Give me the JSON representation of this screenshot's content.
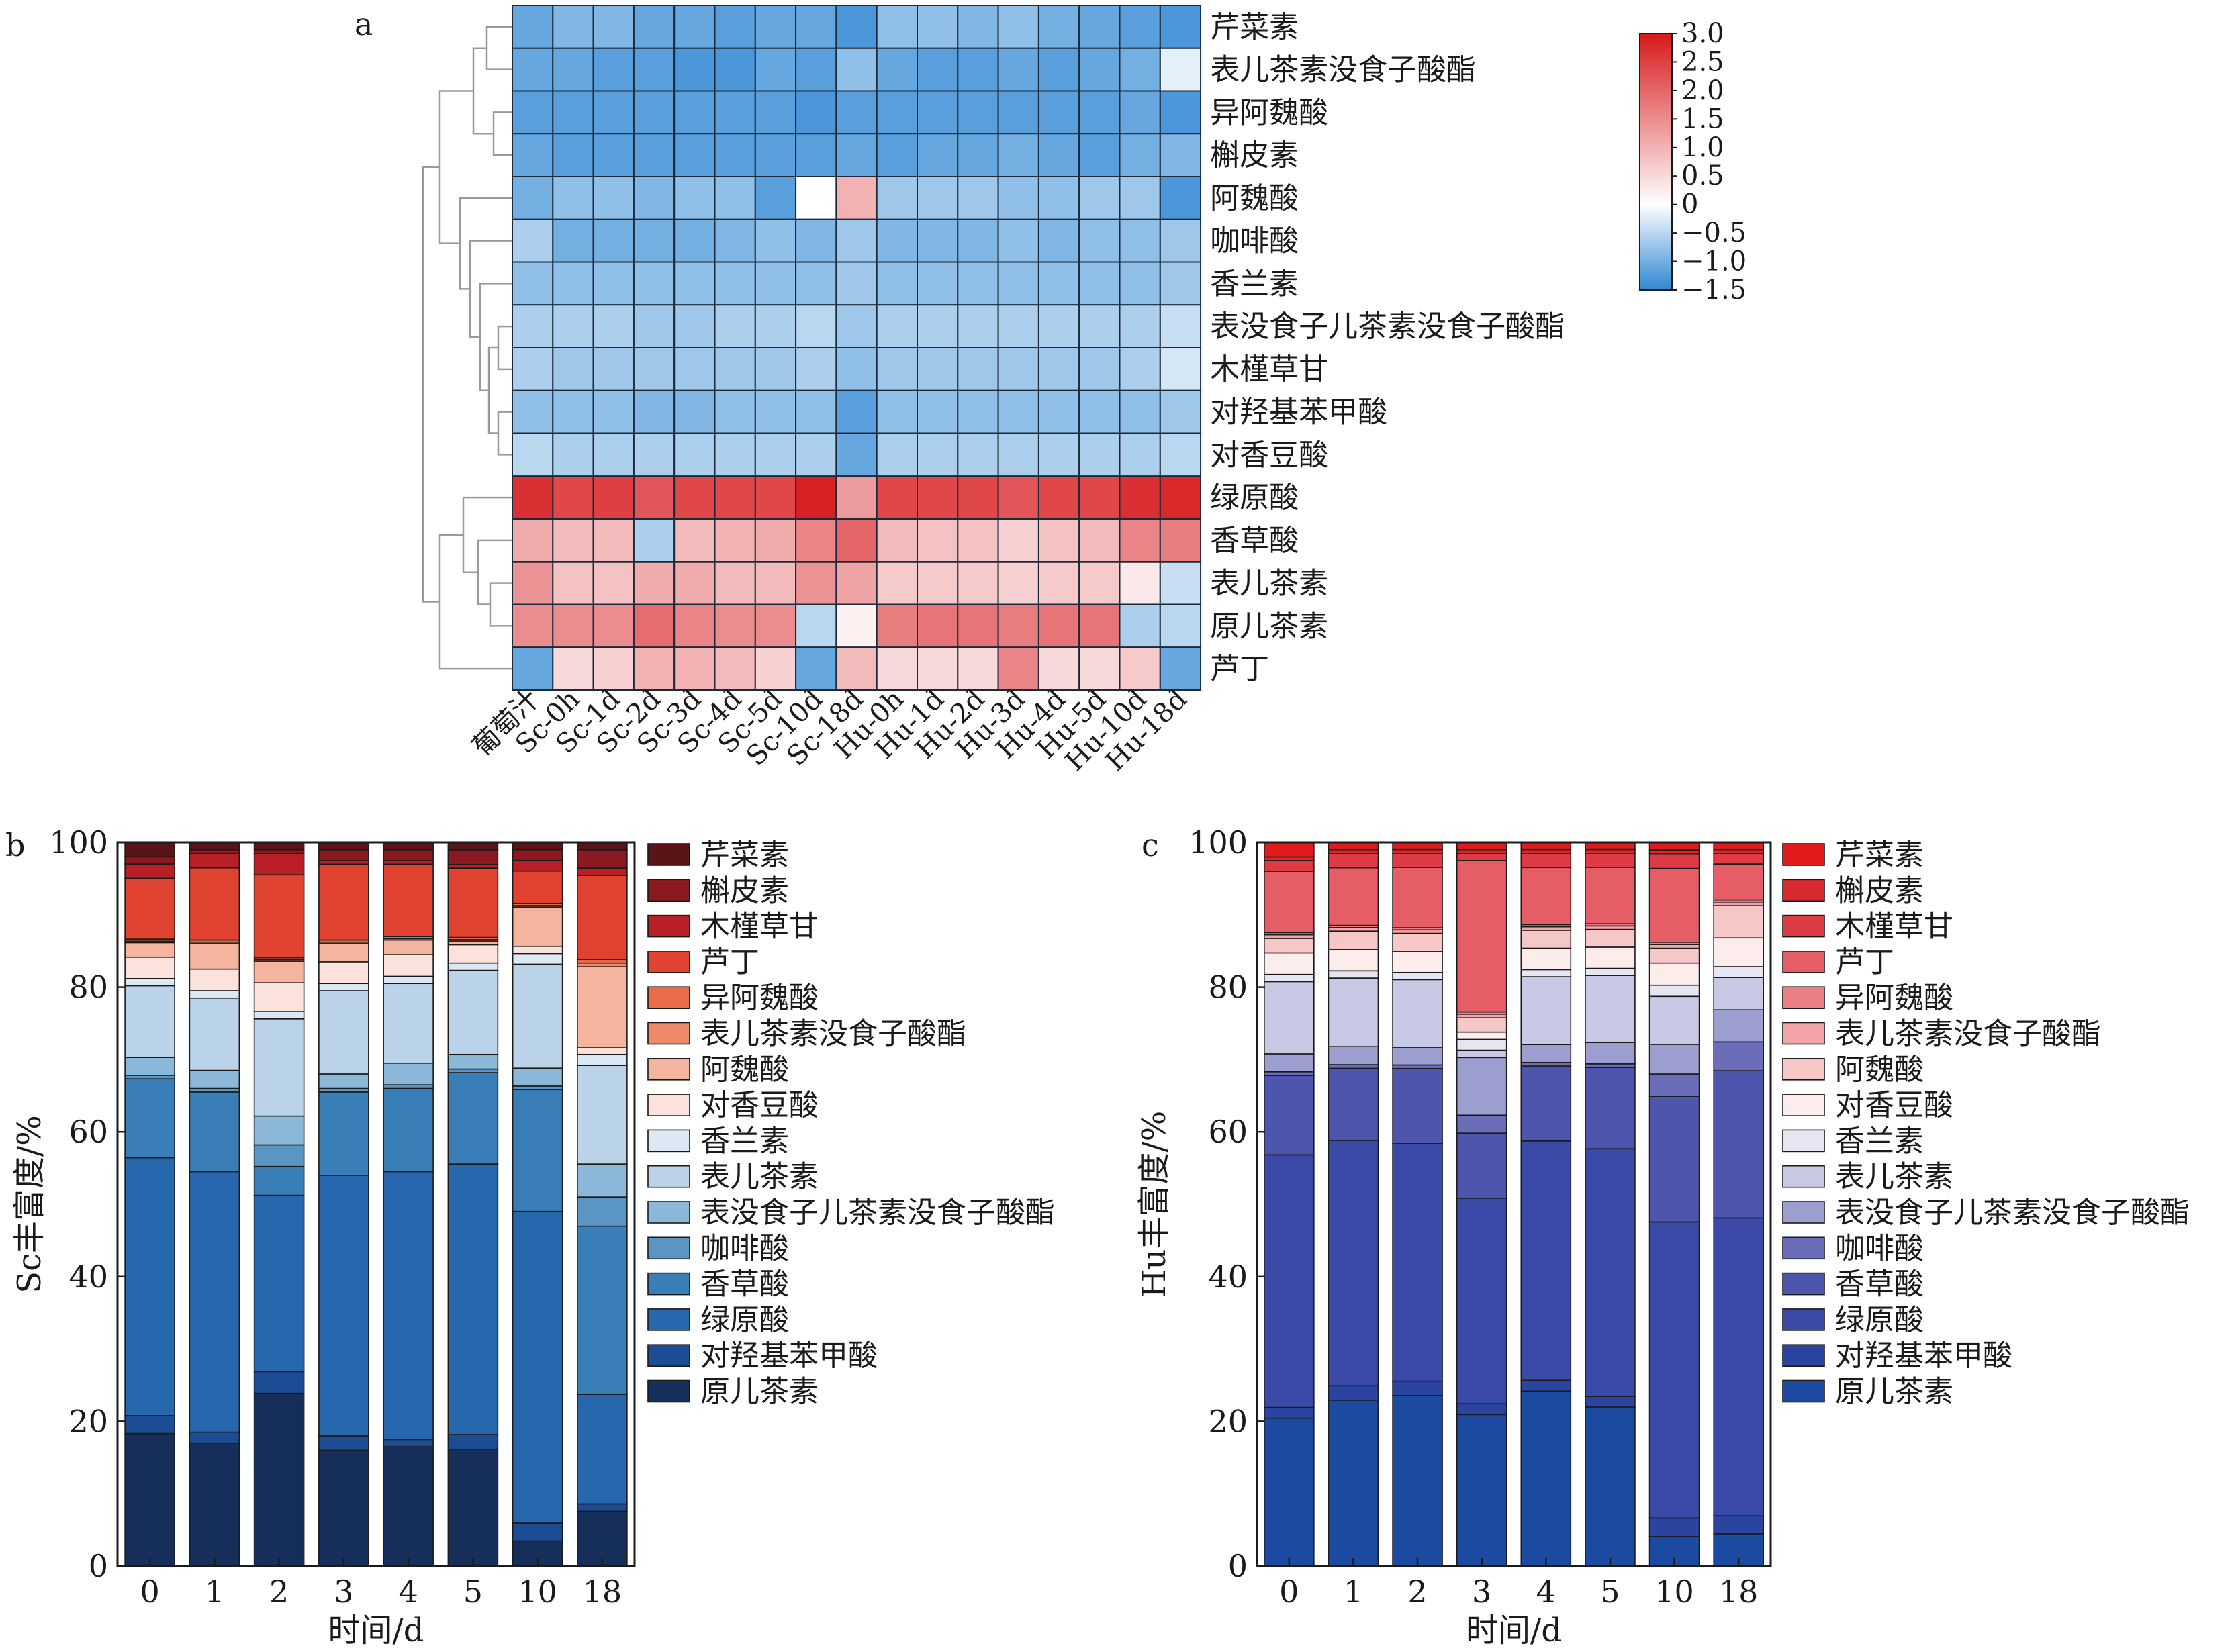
{
  "chart_data": [
    {
      "type": "heatmap",
      "panel_label": "a",
      "title": "",
      "columns": [
        "葡萄汁",
        "Sc-0h",
        "Sc-1d",
        "Sc-2d",
        "Sc-3d",
        "Sc-4d",
        "Sc-5d",
        "Sc-10d",
        "Sc-18d",
        "Hu-0h",
        "Hu-1d",
        "Hu-2d",
        "Hu-3d",
        "Hu-4d",
        "Hu-5d",
        "Hu-10d",
        "Hu-18d"
      ],
      "rows": [
        "芹菜素",
        "表儿茶素没食子酸酯",
        "异阿魏酸",
        "槲皮素",
        "阿魏酸",
        "咖啡酸",
        "香兰素",
        "表没食子儿茶素没食子酸酯",
        "木槿草甘",
        "对羟基苯甲酸",
        "对香豆酸",
        "绿原酸",
        "香草酸",
        "表儿茶素",
        "原儿茶素",
        "芦丁"
      ],
      "values": [
        [
          -1.1,
          -0.9,
          -0.9,
          -1.1,
          -1.1,
          -1.2,
          -1.1,
          -1.1,
          -1.3,
          -0.8,
          -0.8,
          -0.9,
          -0.8,
          -1.0,
          -1.1,
          -1.2,
          -1.3
        ],
        [
          -1.1,
          -1.1,
          -1.2,
          -1.2,
          -1.3,
          -1.3,
          -1.1,
          -1.2,
          -0.8,
          -1.1,
          -1.2,
          -1.2,
          -1.1,
          -1.2,
          -1.1,
          -1.0,
          -0.2
        ],
        [
          -1.2,
          -1.2,
          -1.2,
          -1.2,
          -1.2,
          -1.2,
          -1.2,
          -1.3,
          -1.2,
          -1.2,
          -1.2,
          -1.2,
          -1.2,
          -1.2,
          -1.2,
          -1.1,
          -1.3
        ],
        [
          -1.1,
          -1.2,
          -1.2,
          -1.2,
          -1.2,
          -1.2,
          -1.2,
          -1.2,
          -1.1,
          -1.2,
          -1.1,
          -1.1,
          -1.0,
          -1.1,
          -1.2,
          -1.0,
          -0.9
        ],
        [
          -1.0,
          -0.8,
          -0.8,
          -0.9,
          -0.8,
          -0.8,
          -1.2,
          0.0,
          1.0,
          -0.7,
          -0.7,
          -0.7,
          -0.8,
          -0.8,
          -0.7,
          -0.7,
          -1.3
        ],
        [
          -0.6,
          -1.0,
          -1.0,
          -1.0,
          -1.0,
          -0.9,
          -0.8,
          -0.9,
          -0.7,
          -0.9,
          -0.9,
          -0.9,
          -0.8,
          -0.9,
          -0.8,
          -0.8,
          -0.7
        ],
        [
          -0.8,
          -0.8,
          -0.8,
          -0.8,
          -0.8,
          -0.8,
          -0.8,
          -0.8,
          -0.7,
          -0.8,
          -0.8,
          -0.8,
          -0.8,
          -0.8,
          -0.8,
          -0.8,
          -0.7
        ],
        [
          -0.6,
          -0.6,
          -0.6,
          -0.7,
          -0.7,
          -0.6,
          -0.6,
          -0.5,
          -0.7,
          -0.6,
          -0.6,
          -0.6,
          -0.6,
          -0.6,
          -0.6,
          -0.6,
          -0.4
        ],
        [
          -0.6,
          -0.7,
          -0.7,
          -0.7,
          -0.7,
          -0.7,
          -0.7,
          -0.6,
          -0.8,
          -0.7,
          -0.7,
          -0.7,
          -0.7,
          -0.7,
          -0.7,
          -0.6,
          -0.3
        ],
        [
          -0.8,
          -0.8,
          -0.8,
          -0.9,
          -0.9,
          -0.8,
          -0.8,
          -0.8,
          -1.2,
          -0.8,
          -0.8,
          -0.8,
          -0.8,
          -0.8,
          -0.8,
          -0.8,
          -0.7
        ],
        [
          -0.5,
          -0.6,
          -0.6,
          -0.6,
          -0.6,
          -0.6,
          -0.6,
          -0.6,
          -1.1,
          -0.6,
          -0.6,
          -0.6,
          -0.6,
          -0.6,
          -0.6,
          -0.6,
          -0.5
        ],
        [
          2.7,
          2.4,
          2.5,
          2.2,
          2.4,
          2.4,
          2.4,
          2.9,
          1.3,
          2.4,
          2.4,
          2.4,
          2.2,
          2.4,
          2.4,
          2.7,
          2.8
        ],
        [
          1.1,
          0.9,
          0.9,
          -0.6,
          0.9,
          1.0,
          1.1,
          1.6,
          2.0,
          0.9,
          0.8,
          0.8,
          0.6,
          0.8,
          0.9,
          1.6,
          1.7
        ],
        [
          1.4,
          0.8,
          0.8,
          1.1,
          1.1,
          0.9,
          0.9,
          1.4,
          1.2,
          0.7,
          0.7,
          0.7,
          0.6,
          0.7,
          0.7,
          0.3,
          -0.4
        ],
        [
          1.5,
          1.5,
          1.5,
          1.9,
          1.6,
          1.5,
          1.5,
          -0.5,
          0.2,
          1.7,
          1.8,
          1.8,
          1.7,
          1.8,
          1.8,
          -0.6,
          -0.5
        ],
        [
          -1.1,
          0.5,
          0.6,
          1.0,
          1.0,
          0.9,
          0.6,
          -1.1,
          0.9,
          0.5,
          0.5,
          0.5,
          1.6,
          0.5,
          0.5,
          0.7,
          -1.1
        ]
      ],
      "colorbar": {
        "min": -1.5,
        "max": 3.0,
        "ticks": [
          "3.0",
          "2.5",
          "2.0",
          "1.5",
          "1.0",
          "0.5",
          "0",
          "−0.5",
          "−1.0",
          "−1.5"
        ]
      },
      "colors": {
        "low": "#2f87d3",
        "mid": "#ffffff",
        "high": "#d7191c"
      }
    },
    {
      "type": "bar",
      "stacked": true,
      "panel_label": "b",
      "title": "",
      "xlabel": "时间/d",
      "ylabel": "Sc丰富度/%",
      "ylim": [
        0,
        100
      ],
      "yticks": [
        "0",
        "20",
        "40",
        "60",
        "80",
        "100"
      ],
      "categories": [
        "0",
        "1",
        "2",
        "3",
        "4",
        "5",
        "10",
        "18"
      ],
      "series": [
        {
          "name": "原儿茶素",
          "color": "#152e5a",
          "values": [
            18.5,
            17,
            24,
            16,
            16.5,
            16,
            3.5,
            7.5
          ]
        },
        {
          "name": "对羟基苯甲酸",
          "color": "#1b4c94",
          "values": [
            2.5,
            1.5,
            3,
            2,
            1,
            2,
            2.5,
            1
          ]
        },
        {
          "name": "绿原酸",
          "color": "#2767ad",
          "values": [
            36,
            36,
            24.5,
            36,
            37,
            37,
            43.5,
            15
          ]
        },
        {
          "name": "香草酸",
          "color": "#3a7eb8",
          "values": [
            11,
            11,
            4,
            11.5,
            11.5,
            12.5,
            17,
            23
          ]
        },
        {
          "name": "咖啡酸",
          "color": "#5a95c4",
          "values": [
            0.5,
            0.5,
            3,
            0.5,
            0.5,
            0.5,
            0.5,
            4
          ]
        },
        {
          "name": "表没食子儿茶素没食子酸酯",
          "color": "#8bb8d8",
          "values": [
            2.5,
            2.5,
            4,
            2,
            3,
            2,
            2.5,
            4.5
          ]
        },
        {
          "name": "表儿茶素",
          "color": "#bad3e9",
          "values": [
            10,
            10,
            13.5,
            11.5,
            11,
            11.5,
            14.5,
            13.5
          ]
        },
        {
          "name": "香兰素",
          "color": "#dce8f4",
          "values": [
            1,
            1,
            1,
            1,
            1,
            1,
            1.5,
            1.5
          ]
        },
        {
          "name": "对香豆酸",
          "color": "#fbe2dc",
          "values": [
            3,
            3,
            4,
            3,
            3,
            2.5,
            1,
            1
          ]
        },
        {
          "name": "阿魏酸",
          "color": "#f5b49e",
          "values": [
            2,
            3.5,
            3,
            2.5,
            2,
            0.5,
            5.5,
            11
          ]
        },
        {
          "name": "表儿茶素没食子酸酯",
          "color": "#ef8a68",
          "values": [
            0.2,
            0.2,
            0.2,
            0.2,
            0.2,
            0.2,
            0.2,
            0.5
          ]
        },
        {
          "name": "异阿魏酸",
          "color": "#e96b4a",
          "values": [
            0.3,
            0.3,
            0.3,
            0.3,
            0.3,
            0.3,
            0.3,
            0.5
          ]
        },
        {
          "name": "芦丁",
          "color": "#e0432f",
          "values": [
            8.5,
            10,
            11.5,
            10.5,
            10,
            9.5,
            4.5,
            11.5
          ]
        },
        {
          "name": "木槿草甘",
          "color": "#b82025",
          "values": [
            2,
            2,
            3,
            0.5,
            0.5,
            0.5,
            1.5,
            1
          ]
        },
        {
          "name": "槲皮素",
          "color": "#8c1820",
          "values": [
            1,
            0.5,
            0.5,
            1.5,
            1.5,
            2,
            1.5,
            2.5
          ]
        },
        {
          "name": "芹菜素",
          "color": "#5a1418",
          "values": [
            2,
            1,
            1,
            1,
            1,
            1,
            1,
            1
          ]
        }
      ]
    },
    {
      "type": "bar",
      "stacked": true,
      "panel_label": "c",
      "title": "",
      "xlabel": "时间/d",
      "ylabel": "Hu丰富度/%",
      "ylim": [
        0,
        100
      ],
      "yticks": [
        "0",
        "20",
        "40",
        "60",
        "80",
        "100"
      ],
      "categories": [
        "0",
        "1",
        "2",
        "3",
        "4",
        "5",
        "10",
        "18"
      ],
      "series": [
        {
          "name": "原儿茶素",
          "color": "#1c4aa0",
          "values": [
            20.5,
            23,
            24,
            21,
            24.5,
            22.5,
            4,
            4.5
          ]
        },
        {
          "name": "对羟基苯甲酸",
          "color": "#2a44a0",
          "values": [
            1.5,
            2,
            2,
            1.5,
            1.5,
            1.5,
            2.5,
            2.5
          ]
        },
        {
          "name": "绿原酸",
          "color": "#3a4aa6",
          "values": [
            35,
            34,
            33.5,
            28.5,
            33.5,
            35,
            40,
            41.5
          ]
        },
        {
          "name": "香草酸",
          "color": "#4d55ad",
          "values": [
            11,
            10,
            10.5,
            9,
            10.5,
            11.5,
            17,
            20.5
          ]
        },
        {
          "name": "咖啡酸",
          "color": "#6b6db8",
          "values": [
            0.5,
            0.5,
            0.5,
            2.5,
            0.5,
            0.5,
            3,
            4
          ]
        },
        {
          "name": "表没食子儿茶素没食子酸酯",
          "color": "#9d9ed0",
          "values": [
            2.5,
            2.5,
            2.5,
            8,
            2.5,
            3,
            4,
            4.5
          ]
        },
        {
          "name": "表儿茶素",
          "color": "#c9c9e5",
          "values": [
            10,
            9.5,
            9.5,
            1,
            9.5,
            9.5,
            6.5,
            4.5
          ]
        },
        {
          "name": "香兰素",
          "color": "#e6e6f2",
          "values": [
            1,
            1,
            1,
            1.5,
            1,
            1,
            1.5,
            1.5
          ]
        },
        {
          "name": "对香豆酸",
          "color": "#fcecec",
          "values": [
            3,
            3,
            3,
            1,
            3,
            3,
            3,
            4
          ]
        },
        {
          "name": "阿魏酸",
          "color": "#f6c7c7",
          "values": [
            2,
            2.5,
            2.5,
            2,
            2.5,
            2.5,
            2,
            4.5
          ]
        },
        {
          "name": "表儿茶素没食子酸酯",
          "color": "#f4a3a6",
          "values": [
            0.5,
            0.5,
            0.5,
            0.5,
            0.5,
            0.5,
            0.5,
            0.5
          ]
        },
        {
          "name": "异阿魏酸",
          "color": "#ec7f85",
          "values": [
            0.3,
            0.3,
            0.3,
            0.3,
            0.3,
            0.3,
            0.3,
            0.3
          ]
        },
        {
          "name": "芦丁",
          "color": "#e55e66",
          "values": [
            8.5,
            8,
            8.5,
            21,
            8,
            8,
            10,
            5
          ]
        },
        {
          "name": "木槿草甘",
          "color": "#de3c44",
          "values": [
            1.5,
            2,
            2,
            1,
            2,
            2,
            2,
            1.5
          ]
        },
        {
          "name": "槲皮素",
          "color": "#d72a30",
          "values": [
            0.5,
            0.5,
            0.5,
            0.5,
            0.5,
            0.5,
            0.5,
            0.5
          ]
        },
        {
          "name": "芹菜素",
          "color": "#e31a1c",
          "values": [
            2,
            1,
            1,
            1,
            1,
            1,
            1,
            1
          ]
        }
      ]
    }
  ]
}
